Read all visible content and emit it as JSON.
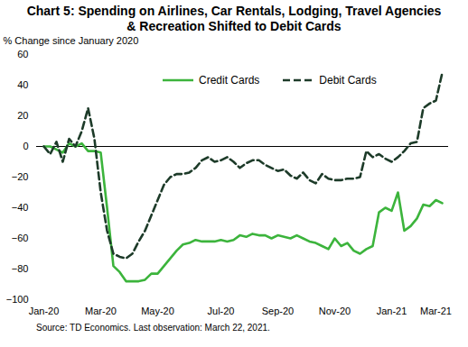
{
  "chart_data": {
    "type": "line",
    "title": "Chart 5: Spending on Airlines, Car Rentals, Lodging, Travel Agencies & Recreation Shifted to Debit Cards",
    "y_label": "% Change since January 2020",
    "source": "Source: TD Economics. Last observation: March 22, 2021.",
    "categories": [
      "Jan-20",
      null,
      null,
      null,
      null,
      null,
      null,
      null,
      null,
      "Mar-20",
      null,
      null,
      null,
      null,
      null,
      null,
      null,
      null,
      "May-20",
      null,
      null,
      null,
      null,
      null,
      null,
      null,
      null,
      null,
      "Jul-20",
      null,
      null,
      null,
      null,
      null,
      null,
      null,
      null,
      "Sep-20",
      null,
      null,
      null,
      null,
      null,
      null,
      null,
      null,
      "Nov-20",
      null,
      null,
      null,
      null,
      null,
      null,
      null,
      null,
      "Jan-21",
      null,
      null,
      null,
      null,
      null,
      null,
      "Mar-21",
      null
    ],
    "series": [
      {
        "name": "Credit Cards",
        "color": "#3cb43c",
        "line_style": "solid",
        "values": [
          0,
          0,
          -2,
          -4,
          2,
          0,
          2,
          -3,
          -3,
          -4,
          -40,
          -78,
          -82,
          -88,
          -88,
          -88,
          -87,
          -83,
          -83,
          -78,
          -73,
          -68,
          -64,
          -63,
          -61,
          -62,
          -62,
          -62,
          -61,
          -62,
          -61,
          -58,
          -59,
          -57,
          -58,
          -58,
          -60,
          -58,
          -59,
          -60,
          -58,
          -60,
          -62,
          -63,
          -65,
          -67,
          -60,
          -65,
          -63,
          -68,
          -70,
          -67,
          -65,
          -43,
          -40,
          -42,
          -30,
          -55,
          -52,
          -47,
          -38,
          -39,
          -35,
          -37
        ]
      },
      {
        "name": "Debit Cards",
        "color": "#1d3b29",
        "line_style": "dashed",
        "values": [
          0,
          -5,
          3,
          -10,
          5,
          0,
          10,
          25,
          5,
          -30,
          -55,
          -70,
          -72,
          -73,
          -70,
          -62,
          -55,
          -45,
          -35,
          -25,
          -20,
          -18,
          -18,
          -17,
          -14,
          -9,
          -7,
          -10,
          -9,
          -7,
          -10,
          -14,
          -11,
          -9,
          -9,
          -12,
          -14,
          -16,
          -15,
          -19,
          -21,
          -17,
          -22,
          -24,
          -18,
          -21,
          -22,
          -22,
          -21,
          -21,
          -20,
          -3,
          -7,
          -5,
          -8,
          -10,
          -7,
          -3,
          2,
          3,
          25,
          28,
          30,
          48
        ]
      }
    ],
    "ylim": [
      -100,
      60
    ],
    "yticks": [
      -100,
      -80,
      -60,
      -40,
      -20,
      0,
      20,
      40,
      60
    ],
    "grid": false,
    "legend": "top"
  }
}
